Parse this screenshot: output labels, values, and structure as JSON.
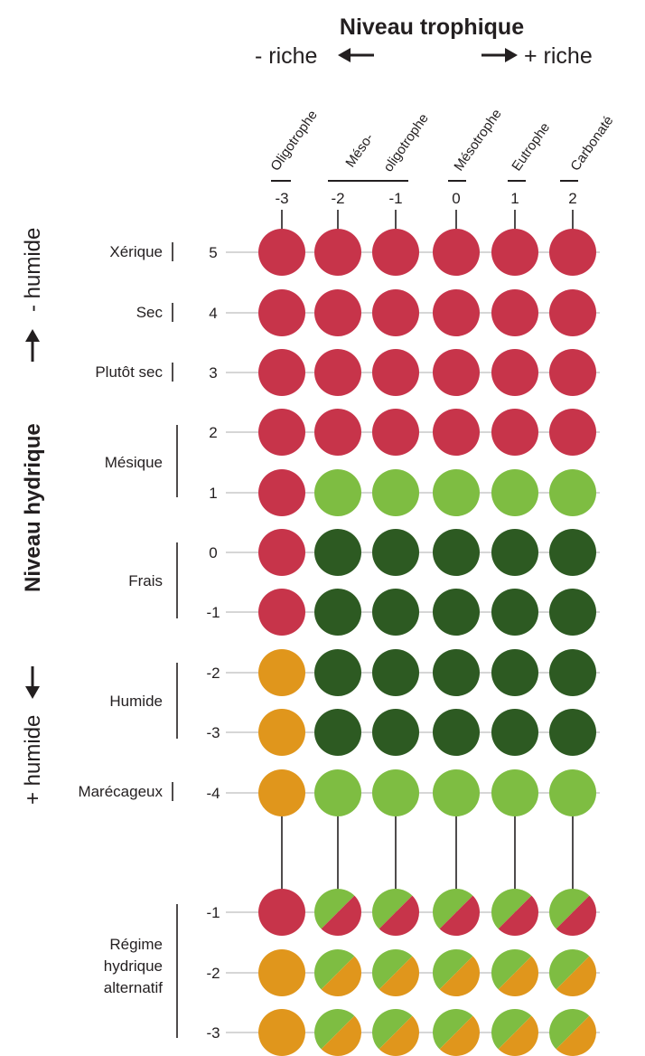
{
  "header": {
    "title": "Niveau trophique",
    "less": "- riche",
    "more": "+ riche"
  },
  "axis": {
    "title": "Niveau hydrique",
    "less": "- humide",
    "more": "+ humide"
  },
  "columns": [
    {
      "label": "Oligotrophe",
      "value": "-3"
    },
    {
      "label": "Méso-",
      "label2": "oligotrophe",
      "value": "-2"
    },
    {
      "label": "",
      "value": "-1"
    },
    {
      "label": "Mésotrophe",
      "value": "0"
    },
    {
      "label": "Eutrophe",
      "value": "1"
    },
    {
      "label": "Carbonaté",
      "value": "2"
    }
  ],
  "row_values": [
    "5",
    "4",
    "3",
    "2",
    "1",
    "0",
    "-1",
    "-2",
    "-3",
    "-4",
    "-1",
    "-2",
    "-3"
  ],
  "groups": {
    "xerique": "Xérique",
    "sec": "Sec",
    "plutot_sec": "Plutôt sec",
    "mesique": "Mésique",
    "frais": "Frais",
    "humide": "Humide",
    "marecageux": "Marécageux",
    "regime_l1": "Régime",
    "regime_l2": "hydrique",
    "regime_l3": "alternatif"
  },
  "colors": {
    "R": "#c7344a",
    "L": "#7ebd42",
    "D": "#2d5a22",
    "O": "#e0961c"
  },
  "chart_data": {
    "type": "heatmap",
    "x": [
      "-3",
      "-2",
      "-1",
      "0",
      "1",
      "2"
    ],
    "y": [
      "5",
      "4",
      "3",
      "2",
      "1",
      "0",
      "-1",
      "-2",
      "-3",
      "-4",
      "-1",
      "-2",
      "-3"
    ],
    "legend": "none",
    "cells": [
      [
        "R",
        "R",
        "R",
        "R",
        "R",
        "R"
      ],
      [
        "R",
        "R",
        "R",
        "R",
        "R",
        "R"
      ],
      [
        "R",
        "R",
        "R",
        "R",
        "R",
        "R"
      ],
      [
        "R",
        "R",
        "R",
        "R",
        "R",
        "R"
      ],
      [
        "R",
        "L",
        "L",
        "L",
        "L",
        "L"
      ],
      [
        "R",
        "D",
        "D",
        "D",
        "D",
        "D"
      ],
      [
        "R",
        "D",
        "D",
        "D",
        "D",
        "D"
      ],
      [
        "O",
        "D",
        "D",
        "D",
        "D",
        "D"
      ],
      [
        "O",
        "D",
        "D",
        "D",
        "D",
        "D"
      ],
      [
        "O",
        "L",
        "L",
        "L",
        "L",
        "L"
      ],
      [
        "R",
        "L/R",
        "L/R",
        "L/R",
        "L/R",
        "L/R"
      ],
      [
        "O",
        "L/O",
        "L/O",
        "L/O",
        "L/O",
        "L/O"
      ],
      [
        "O",
        "L/O",
        "L/O",
        "L/O",
        "L/O",
        "L/O"
      ]
    ]
  }
}
